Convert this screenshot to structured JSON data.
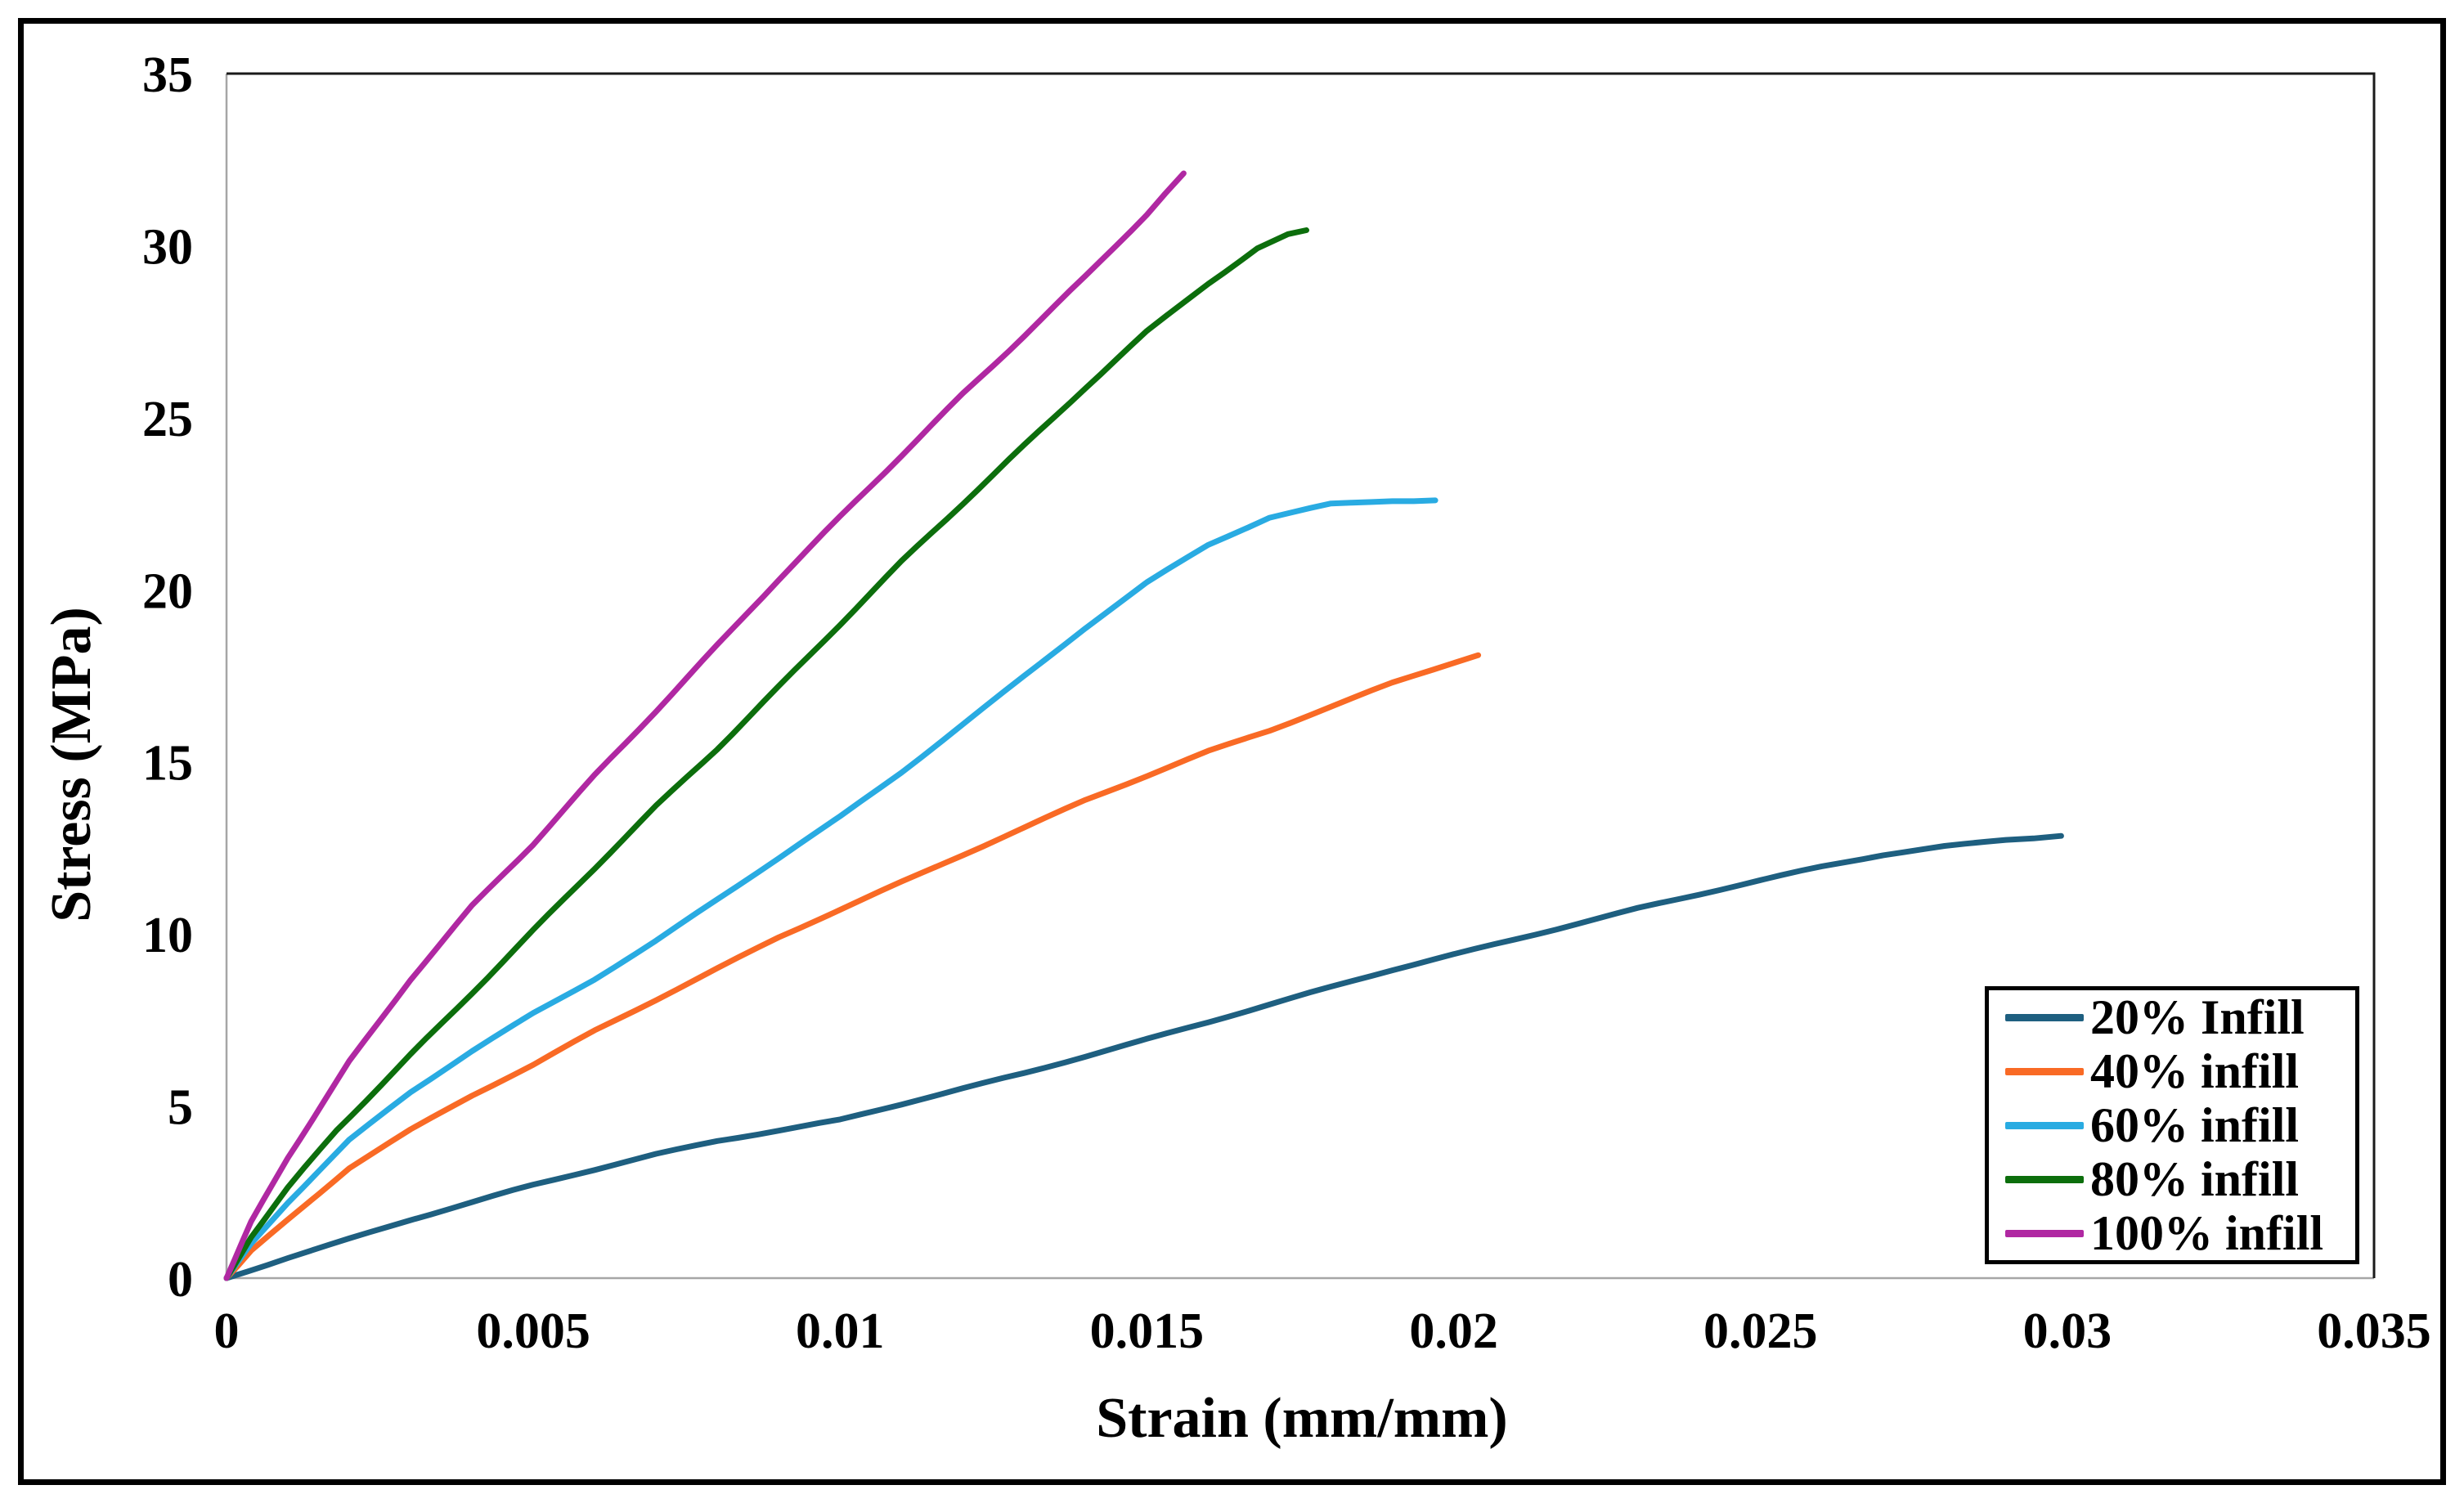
{
  "figure": {
    "kind": "stress-strain line chart",
    "border_color": "#000000",
    "background": "#ffffff"
  },
  "chart_data": {
    "type": "line",
    "title": "",
    "xlabel": "Strain (mm/mm)",
    "ylabel": "Stress (MPa)",
    "xlim": [
      0,
      0.035
    ],
    "ylim": [
      0,
      35
    ],
    "grid": false,
    "legend_position": "lower-right-inside",
    "x_ticks": [
      0,
      0.005,
      0.01,
      0.015,
      0.02,
      0.025,
      0.03,
      0.035
    ],
    "x_tick_labels": [
      "0",
      "0.005",
      "0.01",
      "0.015",
      "0.02",
      "0.025",
      "0.03",
      "0.035"
    ],
    "y_ticks": [
      0,
      5,
      10,
      15,
      20,
      25,
      30,
      35
    ],
    "y_tick_labels": [
      "0",
      "5",
      "10",
      "15",
      "20",
      "25",
      "30",
      "35"
    ],
    "axis_line_color": "#a6a6a6",
    "plot_border_color": "#1a1a1a",
    "series": [
      {
        "name": "20% Infill",
        "color": "#1E5F80",
        "points": [
          [
            0,
            0
          ],
          [
            0.001,
            0.6
          ],
          [
            0.002,
            1.15
          ],
          [
            0.003,
            1.7
          ],
          [
            0.004,
            2.2
          ],
          [
            0.005,
            2.7
          ],
          [
            0.006,
            3.15
          ],
          [
            0.007,
            3.6
          ],
          [
            0.008,
            4.0
          ],
          [
            0.009,
            4.3
          ],
          [
            0.01,
            4.6
          ],
          [
            0.011,
            5.05
          ],
          [
            0.012,
            5.5
          ],
          [
            0.013,
            5.95
          ],
          [
            0.014,
            6.45
          ],
          [
            0.015,
            6.95
          ],
          [
            0.016,
            7.45
          ],
          [
            0.017,
            7.95
          ],
          [
            0.018,
            8.45
          ],
          [
            0.019,
            8.95
          ],
          [
            0.02,
            9.4
          ],
          [
            0.021,
            9.85
          ],
          [
            0.022,
            10.3
          ],
          [
            0.023,
            10.75
          ],
          [
            0.024,
            11.15
          ],
          [
            0.025,
            11.55
          ],
          [
            0.026,
            11.95
          ],
          [
            0.027,
            12.3
          ],
          [
            0.028,
            12.55
          ],
          [
            0.029,
            12.75
          ],
          [
            0.0299,
            12.85
          ]
        ]
      },
      {
        "name": "40% infill",
        "color": "#F96A25",
        "points": [
          [
            0,
            0
          ],
          [
            0.0004,
            0.8
          ],
          [
            0.001,
            1.7
          ],
          [
            0.002,
            3.2
          ],
          [
            0.003,
            4.3
          ],
          [
            0.004,
            5.3
          ],
          [
            0.005,
            6.2
          ],
          [
            0.006,
            7.2
          ],
          [
            0.007,
            8.1
          ],
          [
            0.008,
            9.0
          ],
          [
            0.009,
            9.9
          ],
          [
            0.01,
            10.7
          ],
          [
            0.011,
            11.5
          ],
          [
            0.012,
            12.3
          ],
          [
            0.013,
            13.1
          ],
          [
            0.014,
            13.9
          ],
          [
            0.015,
            14.6
          ],
          [
            0.016,
            15.3
          ],
          [
            0.017,
            15.9
          ],
          [
            0.018,
            16.6
          ],
          [
            0.019,
            17.3
          ],
          [
            0.02,
            17.9
          ],
          [
            0.0204,
            18.1
          ]
        ]
      },
      {
        "name": "60% infill",
        "color": "#29ABE2",
        "points": [
          [
            0,
            0
          ],
          [
            0.0004,
            1.0
          ],
          [
            0.001,
            2.2
          ],
          [
            0.002,
            4.0
          ],
          [
            0.003,
            5.4
          ],
          [
            0.004,
            6.6
          ],
          [
            0.005,
            7.7
          ],
          [
            0.006,
            8.7
          ],
          [
            0.007,
            9.8
          ],
          [
            0.008,
            11.0
          ],
          [
            0.009,
            12.2
          ],
          [
            0.01,
            13.4
          ],
          [
            0.011,
            14.7
          ],
          [
            0.012,
            16.1
          ],
          [
            0.013,
            17.5
          ],
          [
            0.014,
            18.9
          ],
          [
            0.015,
            20.2
          ],
          [
            0.016,
            21.3
          ],
          [
            0.017,
            22.1
          ],
          [
            0.018,
            22.5
          ],
          [
            0.019,
            22.6
          ],
          [
            0.0197,
            22.6
          ]
        ]
      },
      {
        "name": "80% infill",
        "color": "#0C6E0C",
        "points": [
          [
            0,
            0
          ],
          [
            0.0004,
            1.2
          ],
          [
            0.001,
            2.6
          ],
          [
            0.0018,
            4.3
          ],
          [
            0.003,
            6.5
          ],
          [
            0.004,
            8.3
          ],
          [
            0.005,
            10.1
          ],
          [
            0.006,
            11.9
          ],
          [
            0.007,
            13.7
          ],
          [
            0.008,
            15.4
          ],
          [
            0.009,
            17.2
          ],
          [
            0.01,
            19.0
          ],
          [
            0.011,
            20.8
          ],
          [
            0.012,
            22.5
          ],
          [
            0.013,
            24.2
          ],
          [
            0.014,
            25.9
          ],
          [
            0.015,
            27.5
          ],
          [
            0.016,
            28.9
          ],
          [
            0.0168,
            29.9
          ],
          [
            0.0173,
            30.3
          ],
          [
            0.0176,
            30.45
          ]
        ]
      },
      {
        "name": "100% infill",
        "color": "#B028A2",
        "points": [
          [
            0,
            0
          ],
          [
            0.0004,
            1.6
          ],
          [
            0.001,
            3.5
          ],
          [
            0.002,
            6.3
          ],
          [
            0.003,
            8.7
          ],
          [
            0.004,
            10.8
          ],
          [
            0.005,
            12.6
          ],
          [
            0.006,
            14.6
          ],
          [
            0.007,
            16.5
          ],
          [
            0.008,
            18.4
          ],
          [
            0.009,
            20.3
          ],
          [
            0.01,
            22.1
          ],
          [
            0.011,
            23.9
          ],
          [
            0.012,
            25.7
          ],
          [
            0.013,
            27.4
          ],
          [
            0.014,
            29.1
          ],
          [
            0.015,
            30.9
          ],
          [
            0.0156,
            32.1
          ]
        ]
      }
    ]
  }
}
